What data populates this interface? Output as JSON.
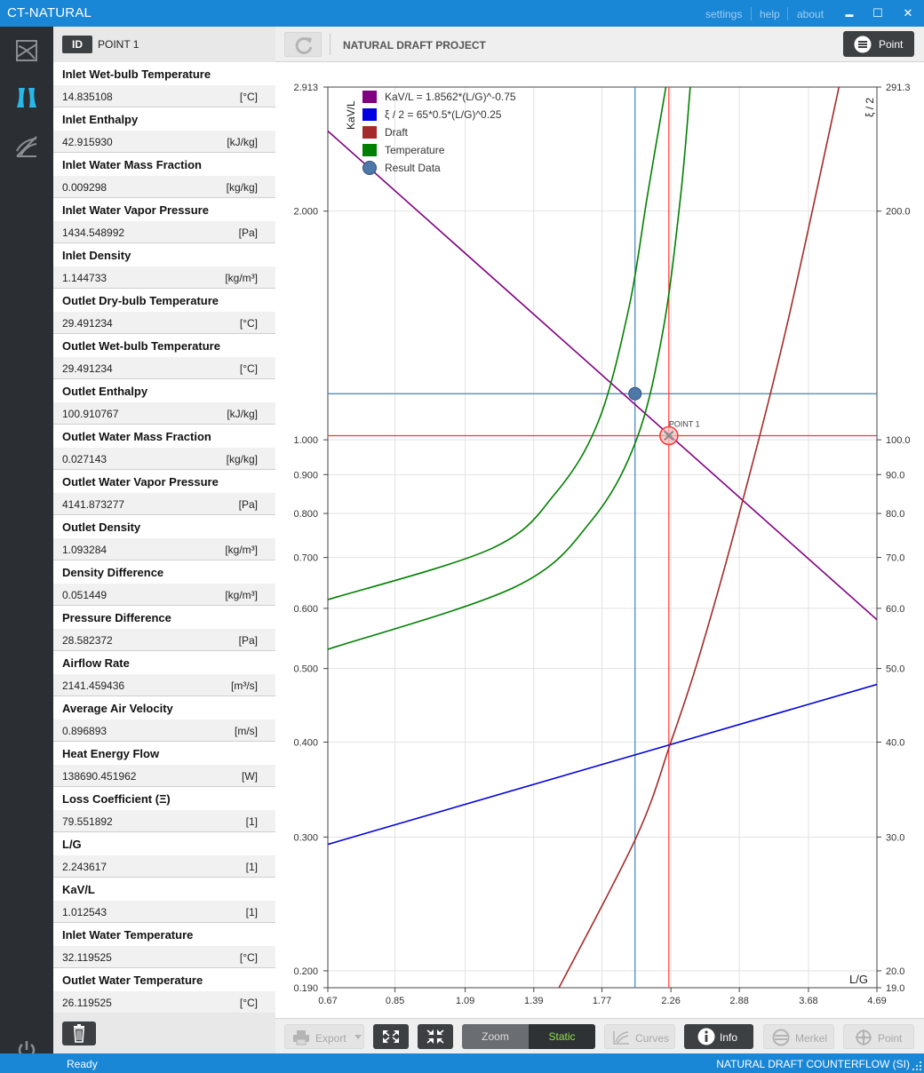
{
  "window": {
    "title": "CT-NATURAL",
    "links": [
      "settings",
      "help",
      "about"
    ],
    "minimize": "▬",
    "maximize": "☐",
    "close": "✕"
  },
  "nav": {
    "items": [
      {
        "icon": "chart-diagram-icon",
        "active": false
      },
      {
        "icon": "cooling-tower-icon",
        "active": true
      },
      {
        "icon": "curves-icon",
        "active": false
      }
    ],
    "power_icon": "power-icon"
  },
  "side": {
    "id_tag": "ID",
    "point_name": "POINT 1",
    "properties": [
      {
        "label": "Inlet Wet-bulb Temperature",
        "value": "14.835108",
        "unit": "[°C]"
      },
      {
        "label": "Inlet Enthalpy",
        "value": "42.915930",
        "unit": "[kJ/kg]"
      },
      {
        "label": "Inlet Water Mass Fraction",
        "value": "0.009298",
        "unit": "[kg/kg]"
      },
      {
        "label": "Inlet Water Vapor Pressure",
        "value": "1434.548992",
        "unit": "[Pa]"
      },
      {
        "label": "Inlet Density",
        "value": "1.144733",
        "unit": "[kg/m³]"
      },
      {
        "label": "Outlet Dry-bulb Temperature",
        "value": "29.491234",
        "unit": "[°C]"
      },
      {
        "label": "Outlet Wet-bulb Temperature",
        "value": "29.491234",
        "unit": "[°C]"
      },
      {
        "label": "Outlet Enthalpy",
        "value": "100.910767",
        "unit": "[kJ/kg]"
      },
      {
        "label": "Outlet Water Mass Fraction",
        "value": "0.027143",
        "unit": "[kg/kg]"
      },
      {
        "label": "Outlet Water Vapor Pressure",
        "value": "4141.873277",
        "unit": "[Pa]"
      },
      {
        "label": "Outlet Density",
        "value": "1.093284",
        "unit": "[kg/m³]"
      },
      {
        "label": "Density Difference",
        "value": "0.051449",
        "unit": "[kg/m³]"
      },
      {
        "label": "Pressure Difference",
        "value": "28.582372",
        "unit": "[Pa]"
      },
      {
        "label": "Airflow Rate",
        "value": "2141.459436",
        "unit": "[m³/s]"
      },
      {
        "label": "Average Air Velocity",
        "value": "0.896893",
        "unit": "[m/s]"
      },
      {
        "label": "Heat Energy Flow",
        "value": "138690.451962",
        "unit": "[W]"
      },
      {
        "label": "Loss Coefficient (Ξ)",
        "value": "79.551892",
        "unit": "[1]"
      },
      {
        "label": "L/G",
        "value": "2.243617",
        "unit": "[1]"
      },
      {
        "label": "KaV/L",
        "value": "1.012543",
        "unit": "[1]"
      },
      {
        "label": "Inlet Water Temperature",
        "value": "32.119525",
        "unit": "[°C]"
      },
      {
        "label": "Outlet Water Temperature",
        "value": "26.119525",
        "unit": "[°C]"
      }
    ],
    "trash_icon": "trash-icon"
  },
  "toolbar": {
    "project_title": "NATURAL DRAFT PROJECT",
    "point_button": "Point"
  },
  "bottom": {
    "export": "Export",
    "zoom": "Zoom",
    "static": "Static",
    "curves": "Curves",
    "info": "Info",
    "merkel": "Merkel",
    "point": "Point"
  },
  "status": {
    "left": "Ready",
    "right": "NATURAL DRAFT COUNTERFLOW (SI)"
  },
  "colors": {
    "accent": "#1a86d6",
    "kavl": "#800080",
    "xi": "#0000e0",
    "draft": "#a52a2a",
    "temperature": "#008000",
    "result": "#4682b4",
    "point": "#ff3333"
  },
  "chart_data": {
    "type": "line",
    "x_scale": "log",
    "y_scale": "log",
    "xlim": [
      0.67,
      4.69
    ],
    "ylim": [
      0.19,
      2.913
    ],
    "y2lim": [
      19.0,
      291.3
    ],
    "xlabel": "L/G",
    "ylabel": "KaV/L",
    "y2label": "ξ / 2",
    "x_ticks": [
      "0.67",
      "0.85",
      "1.09",
      "1.39",
      "1.77",
      "2.26",
      "2.88",
      "3.68",
      "4.69"
    ],
    "y_ticks": [
      "0.190",
      "0.200",
      "0.300",
      "0.400",
      "0.500",
      "0.600",
      "0.700",
      "0.800",
      "0.900",
      "1.000",
      "2.000",
      "2.913"
    ],
    "y2_ticks": [
      "19.0",
      "20.0",
      "30.0",
      "40.0",
      "50.0",
      "60.0",
      "70.0",
      "80.0",
      "90.0",
      "100.0",
      "200.0",
      "291.3"
    ],
    "grid": true,
    "legend_position": "top-left",
    "legend": [
      {
        "label": "KaV/L = 1.8562*(L/G)^-0.75",
        "color": "#800080",
        "marker": "square"
      },
      {
        "label": "ξ / 2 = 65*0.5*(L/G)^0.25",
        "color": "#0000e0",
        "marker": "square"
      },
      {
        "label": "Draft",
        "color": "#a52a2a",
        "marker": "square"
      },
      {
        "label": "Temperature",
        "color": "#008000",
        "marker": "square"
      },
      {
        "label": "Result Data",
        "color": "#4682b4",
        "marker": "circle"
      }
    ],
    "series": [
      {
        "name": "KaV/L = 1.8562*(L/G)^-0.75",
        "color": "#800080",
        "x": [
          0.67,
          4.69
        ],
        "y": [
          2.5497,
          0.5797
        ]
      },
      {
        "name": "ξ / 2 = 65*0.5*(L/G)^0.25",
        "color": "#0000e0",
        "axis": "y2",
        "x": [
          0.67,
          4.69
        ],
        "y": [
          29.34,
          47.65
        ]
      },
      {
        "name": "Draft",
        "color": "#a52a2a",
        "x": [
          1.52,
          2.0,
          2.26,
          2.5,
          2.88,
          3.4,
          4.1
        ],
        "y": [
          0.19,
          0.3,
          0.4,
          0.52,
          0.8,
          1.4,
          2.913
        ]
      },
      {
        "name": "Temperature",
        "color": "#008000",
        "x": [
          0.67,
          1.2,
          1.5,
          1.75,
          1.95,
          2.08,
          2.22
        ],
        "y": [
          0.616,
          0.72,
          0.85,
          1.06,
          1.5,
          2.1,
          2.913
        ]
      },
      {
        "name": "Temperature",
        "color": "#008000",
        "x": [
          0.67,
          1.3,
          1.7,
          2.0,
          2.2,
          2.34,
          2.42
        ],
        "y": [
          0.53,
          0.64,
          0.78,
          1.0,
          1.4,
          2.1,
          2.913
        ]
      }
    ],
    "crosshairs": [
      {
        "color": "#4682b4",
        "x": 1.99,
        "y": 1.15
      },
      {
        "color": "#ff3333",
        "x": 2.243617,
        "y": 1.012543
      }
    ],
    "points": [
      {
        "name": "Result Data",
        "x": 1.99,
        "y": 1.15,
        "color": "#4682b4",
        "label": ""
      },
      {
        "name": "POINT 1",
        "x": 2.243617,
        "y": 1.012543,
        "color": "#ff3333",
        "label": "POINT 1"
      }
    ]
  }
}
